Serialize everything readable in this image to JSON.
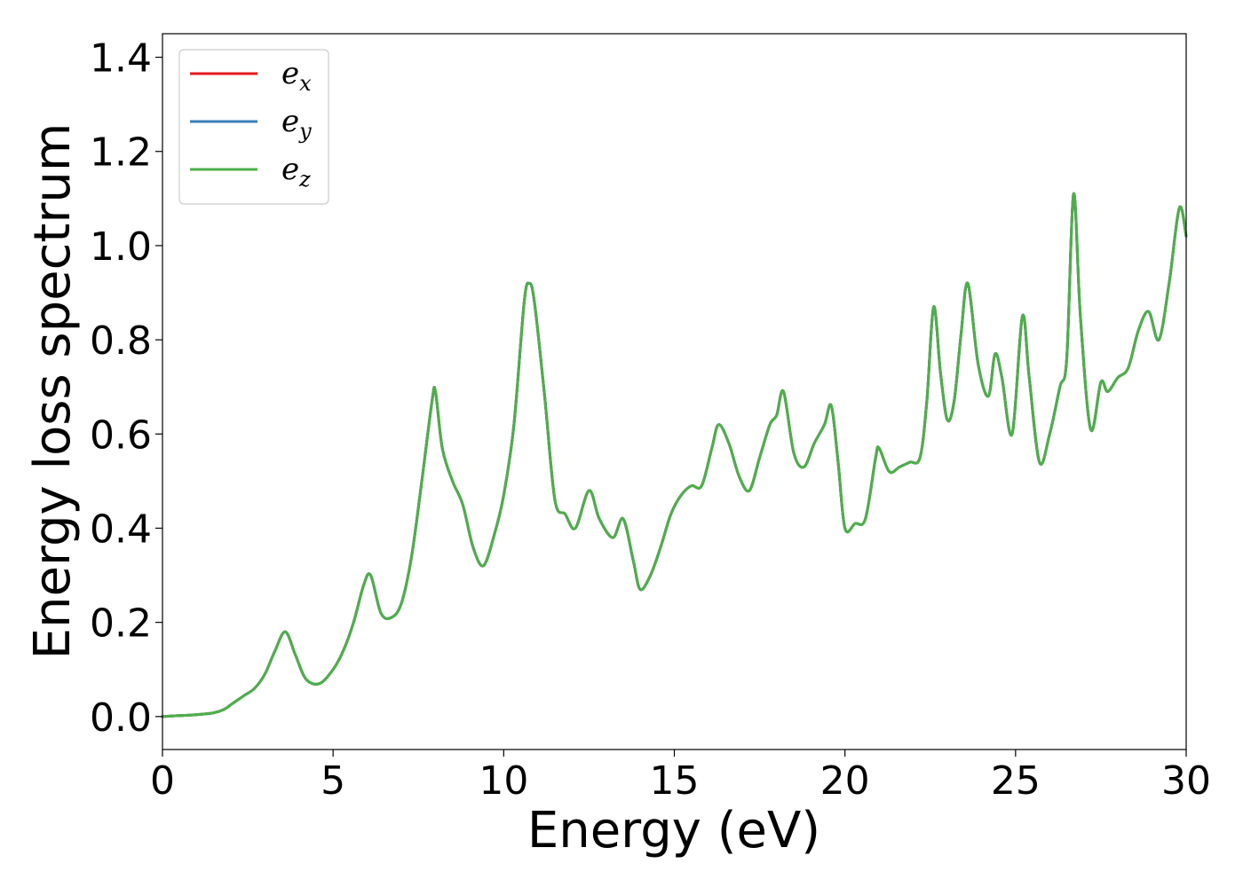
{
  "chart_data": {
    "type": "line",
    "title": "",
    "xlabel": "Energy (eV)",
    "ylabel": "Energy loss spectrum",
    "xlim": [
      0,
      30
    ],
    "ylim": [
      -0.07,
      1.45
    ],
    "xticks": [
      0,
      5,
      10,
      15,
      20,
      25,
      30
    ],
    "xtick_labels": [
      "0",
      "5",
      "10",
      "15",
      "20",
      "25",
      "30"
    ],
    "yticks": [
      0.0,
      0.2,
      0.4,
      0.6,
      0.8,
      1.0,
      1.2,
      1.4
    ],
    "ytick_labels": [
      "0.0",
      "0.2",
      "0.4",
      "0.6",
      "0.8",
      "1.0",
      "1.2",
      "1.4"
    ],
    "grid": false,
    "legend_position": "top-left",
    "series": [
      {
        "name": "e_x",
        "label_base": "e",
        "label_sub": "x",
        "color": "#e41a1c",
        "x": [
          0,
          0.5,
          1.0,
          1.5,
          1.8,
          2.0,
          2.2,
          2.4,
          2.7,
          3.0,
          3.3,
          3.6,
          3.9,
          4.2,
          4.6,
          5.0,
          5.3,
          5.6,
          5.9,
          6.1,
          6.4,
          6.7,
          7.0,
          7.3,
          7.6,
          7.9,
          8.0,
          8.2,
          8.5,
          8.8,
          9.1,
          9.4,
          9.7,
          10.0,
          10.3,
          10.6,
          10.75,
          10.9,
          11.2,
          11.5,
          11.8,
          12.1,
          12.5,
          12.8,
          13.2,
          13.5,
          13.8,
          14.0,
          14.3,
          14.6,
          14.9,
          15.2,
          15.5,
          15.8,
          16.1,
          16.3,
          16.6,
          16.9,
          17.2,
          17.5,
          17.8,
          18.0,
          18.2,
          18.5,
          18.8,
          19.1,
          19.4,
          19.6,
          19.8,
          20.0,
          20.3,
          20.6,
          20.9,
          21.0,
          21.3,
          21.6,
          21.9,
          22.2,
          22.4,
          22.6,
          22.8,
          23.0,
          23.2,
          23.4,
          23.6,
          23.9,
          24.2,
          24.4,
          24.6,
          24.9,
          25.2,
          25.4,
          25.7,
          26.0,
          26.3,
          26.5,
          26.7,
          26.9,
          27.2,
          27.5,
          27.7,
          28.0,
          28.3,
          28.6,
          28.9,
          29.2,
          29.5,
          29.8,
          30.0
        ],
        "values": [
          0.0,
          0.002,
          0.004,
          0.008,
          0.015,
          0.025,
          0.035,
          0.045,
          0.06,
          0.09,
          0.14,
          0.18,
          0.13,
          0.08,
          0.07,
          0.1,
          0.14,
          0.2,
          0.28,
          0.3,
          0.22,
          0.21,
          0.24,
          0.34,
          0.5,
          0.67,
          0.69,
          0.57,
          0.5,
          0.45,
          0.36,
          0.32,
          0.38,
          0.47,
          0.62,
          0.88,
          0.92,
          0.88,
          0.68,
          0.46,
          0.43,
          0.4,
          0.48,
          0.42,
          0.38,
          0.42,
          0.33,
          0.27,
          0.3,
          0.36,
          0.43,
          0.47,
          0.49,
          0.49,
          0.57,
          0.62,
          0.58,
          0.51,
          0.48,
          0.55,
          0.62,
          0.64,
          0.69,
          0.56,
          0.53,
          0.58,
          0.62,
          0.66,
          0.54,
          0.4,
          0.41,
          0.42,
          0.55,
          0.57,
          0.52,
          0.53,
          0.54,
          0.55,
          0.67,
          0.87,
          0.73,
          0.63,
          0.67,
          0.81,
          0.92,
          0.75,
          0.68,
          0.77,
          0.72,
          0.6,
          0.85,
          0.72,
          0.54,
          0.6,
          0.7,
          0.76,
          1.11,
          0.85,
          0.61,
          0.71,
          0.69,
          0.72,
          0.74,
          0.82,
          0.86,
          0.8,
          0.92,
          1.08,
          1.02
        ]
      },
      {
        "name": "e_y",
        "label_base": "e",
        "label_sub": "y",
        "color": "#377eb8",
        "same_as": "e_x"
      },
      {
        "name": "e_z",
        "label_base": "e",
        "label_sub": "z",
        "color": "#4daf4a",
        "same_as": "e_x"
      }
    ]
  }
}
